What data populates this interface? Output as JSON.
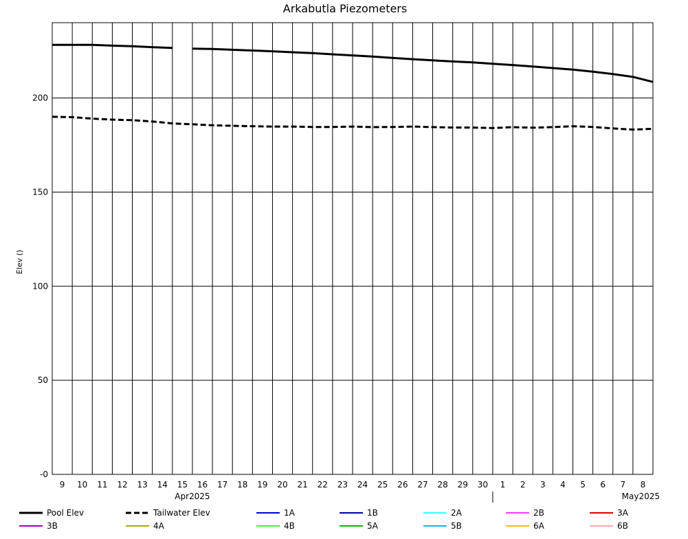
{
  "chart_data": {
    "type": "line",
    "title": "Arkabutla Piezometers",
    "ylabel": "Elev ()",
    "ylim": [
      0,
      240
    ],
    "yticks": [
      {
        "value": 0,
        "label": "-0"
      },
      {
        "value": 50,
        "label": "50"
      },
      {
        "value": 100,
        "label": "100"
      },
      {
        "value": 150,
        "label": "150"
      },
      {
        "value": 200,
        "label": "200"
      }
    ],
    "xlim": [
      "2025-04-08",
      "2025-05-08"
    ],
    "x_day_labels": [
      "9",
      "10",
      "11",
      "12",
      "13",
      "14",
      "15",
      "16",
      "17",
      "18",
      "19",
      "20",
      "21",
      "22",
      "23",
      "24",
      "25",
      "26",
      "27",
      "28",
      "29",
      "30",
      "1",
      "2",
      "3",
      "4",
      "5",
      "6",
      "7",
      "8"
    ],
    "month_labels": [
      {
        "label": "Apr2025",
        "date": "2025-04-15"
      },
      {
        "label": "May2025",
        "date": "2025-05-08"
      }
    ],
    "grid": true,
    "legend_placement": "bottom",
    "series": [
      {
        "name": "Pool Elev",
        "color": "#000000",
        "style": "solid",
        "segments": [
          [
            [
              "2025-04-08",
              228.2
            ],
            [
              "2025-04-09",
              228.2
            ],
            [
              "2025-04-10",
              228.2
            ],
            [
              "2025-04-11",
              227.8
            ],
            [
              "2025-04-12",
              227.5
            ],
            [
              "2025-04-13",
              227.0
            ],
            [
              "2025-04-14",
              226.6
            ]
          ],
          [
            [
              "2025-04-15",
              226.2
            ],
            [
              "2025-04-16",
              226.0
            ],
            [
              "2025-04-17",
              225.6
            ],
            [
              "2025-04-18",
              225.2
            ],
            [
              "2025-04-19",
              224.8
            ],
            [
              "2025-04-20",
              224.3
            ],
            [
              "2025-04-21",
              223.8
            ],
            [
              "2025-04-22",
              223.2
            ],
            [
              "2025-04-23",
              222.6
            ],
            [
              "2025-04-24",
              222.0
            ],
            [
              "2025-04-25",
              221.3
            ],
            [
              "2025-04-26",
              220.6
            ],
            [
              "2025-04-27",
              220.0
            ],
            [
              "2025-04-28",
              219.4
            ],
            [
              "2025-04-29",
              218.9
            ],
            [
              "2025-04-30",
              218.2
            ],
            [
              "2025-05-01",
              217.5
            ],
            [
              "2025-05-02",
              216.7
            ],
            [
              "2025-05-03",
              215.9
            ],
            [
              "2025-05-04",
              215.1
            ],
            [
              "2025-05-05",
              214.0
            ],
            [
              "2025-05-06",
              212.7
            ],
            [
              "2025-05-07",
              211.2
            ],
            [
              "2025-05-08",
              208.5
            ]
          ]
        ]
      },
      {
        "name": "Tailwater Elev",
        "color": "#000000",
        "style": "dashed",
        "segments": [
          [
            [
              "2025-04-08",
              190.0
            ],
            [
              "2025-04-09",
              189.8
            ],
            [
              "2025-04-10",
              189.0
            ],
            [
              "2025-04-11",
              188.5
            ],
            [
              "2025-04-12",
              188.2
            ],
            [
              "2025-04-13",
              187.5
            ],
            [
              "2025-04-14",
              186.5
            ],
            [
              "2025-04-15",
              186.0
            ],
            [
              "2025-04-16",
              185.5
            ],
            [
              "2025-04-17",
              185.2
            ],
            [
              "2025-04-18",
              185.0
            ],
            [
              "2025-04-19",
              184.8
            ],
            [
              "2025-04-20",
              184.8
            ],
            [
              "2025-04-21",
              184.6
            ],
            [
              "2025-04-22",
              184.6
            ],
            [
              "2025-04-23",
              184.8
            ],
            [
              "2025-04-24",
              184.5
            ],
            [
              "2025-04-25",
              184.6
            ],
            [
              "2025-04-26",
              184.8
            ],
            [
              "2025-04-27",
              184.5
            ],
            [
              "2025-04-28",
              184.3
            ],
            [
              "2025-04-29",
              184.3
            ],
            [
              "2025-04-30",
              184.0
            ],
            [
              "2025-05-01",
              184.5
            ],
            [
              "2025-05-02",
              184.2
            ],
            [
              "2025-05-03",
              184.5
            ],
            [
              "2025-05-04",
              185.0
            ],
            [
              "2025-05-05",
              184.6
            ],
            [
              "2025-05-06",
              183.8
            ],
            [
              "2025-05-07",
              183.2
            ],
            [
              "2025-05-08",
              183.6
            ]
          ]
        ]
      },
      {
        "name": "1A",
        "color": "#0000cc",
        "style": "solid",
        "segments": []
      },
      {
        "name": "1B",
        "color": "#000099",
        "style": "solid",
        "segments": []
      },
      {
        "name": "2A",
        "color": "#33ffff",
        "style": "solid",
        "segments": []
      },
      {
        "name": "2B",
        "color": "#ff33ff",
        "style": "solid",
        "segments": []
      },
      {
        "name": "3A",
        "color": "#dd0000",
        "style": "solid",
        "segments": []
      },
      {
        "name": "3B",
        "color": "#aa00aa",
        "style": "solid",
        "segments": []
      },
      {
        "name": "4A",
        "color": "#aaaa00",
        "style": "solid",
        "segments": []
      },
      {
        "name": "4B",
        "color": "#33ff33",
        "style": "solid",
        "segments": []
      },
      {
        "name": "5A",
        "color": "#00bb00",
        "style": "solid",
        "segments": []
      },
      {
        "name": "5B",
        "color": "#00bbff",
        "style": "solid",
        "segments": []
      },
      {
        "name": "6A",
        "color": "#ffbb00",
        "style": "solid",
        "segments": []
      },
      {
        "name": "6B",
        "color": "#ffaaaa",
        "style": "solid",
        "segments": []
      }
    ]
  }
}
